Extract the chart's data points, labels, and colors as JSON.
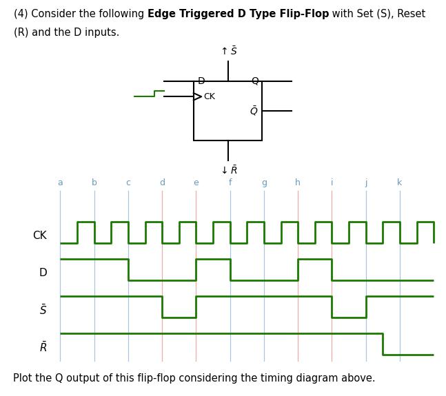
{
  "bg_color": "#ffffff",
  "line_color": "#1a7a00",
  "vline_color_blue": "#99bbdd",
  "vline_color_red": "#ee9999",
  "label_color": "#6699bb",
  "signal_label_color": "#000000",
  "figsize": [
    6.47,
    5.75
  ],
  "dpi": 100,
  "labels": [
    "a",
    "b",
    "c",
    "d",
    "e",
    "f",
    "g",
    "h",
    "i",
    "j",
    "k"
  ],
  "red_labels": [
    "d",
    "e",
    "h",
    "i"
  ],
  "signals": {
    "CK": {
      "transitions": [
        0,
        0.5,
        1,
        1.5,
        2,
        2.5,
        3,
        3.5,
        4,
        4.5,
        5,
        5.5,
        6,
        6.5,
        7,
        7.5,
        8,
        8.5,
        9,
        9.5,
        10,
        10.5,
        11
      ],
      "values": [
        0,
        1,
        0,
        1,
        0,
        1,
        0,
        1,
        0,
        1,
        0,
        1,
        0,
        1,
        0,
        1,
        0,
        1,
        0,
        1,
        0,
        1,
        0
      ]
    },
    "D": {
      "transitions": [
        0,
        2,
        4,
        5,
        7,
        8,
        11
      ],
      "values": [
        1,
        0,
        1,
        0,
        1,
        0,
        0
      ]
    },
    "S_bar": {
      "transitions": [
        0,
        3,
        4,
        8,
        9,
        11
      ],
      "values": [
        1,
        0,
        1,
        0,
        1,
        1
      ]
    },
    "R_bar": {
      "transitions": [
        0,
        9.5,
        11
      ],
      "values": [
        1,
        0,
        0
      ]
    }
  },
  "title_line1_normal": "(4) Consider the following ",
  "title_line1_bold": "Edge Triggered D Type Flip-Flop",
  "title_line1_normal2": " with Set (S), Reset",
  "title_line2": "(R) and the D inputs.",
  "footer_text": "Plot the Q output of this flip-flop considering the timing diagram above."
}
